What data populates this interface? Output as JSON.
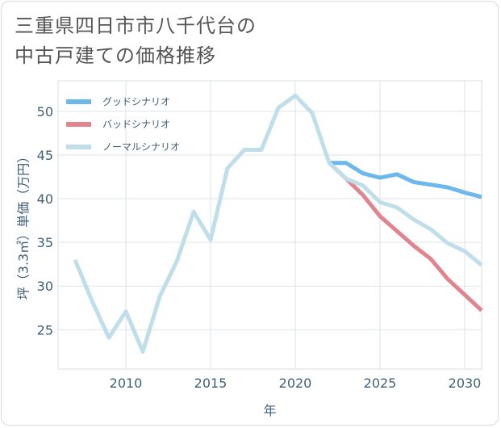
{
  "title_lines": [
    "三重県四日市市八千代台の",
    "中古戸建ての価格推移"
  ],
  "chart_data": {
    "type": "line",
    "xlabel": "年",
    "ylabel": "坪（3.3㎡）単価（万円）",
    "xlim": [
      2006,
      2031
    ],
    "ylim": [
      20.5,
      53.5
    ],
    "x_ticks": [
      2010,
      2015,
      2020,
      2025,
      2030
    ],
    "y_ticks": [
      25,
      30,
      35,
      40,
      45,
      50
    ],
    "grid": true,
    "legend_position": "top-left",
    "series": [
      {
        "name": "グッドシナリオ",
        "color": "#6cb8ec",
        "x": [
          2022,
          2023,
          2024,
          2025,
          2026,
          2027,
          2028,
          2029,
          2030,
          2031
        ],
        "y": [
          44.1,
          44.1,
          42.9,
          42.4,
          42.8,
          41.9,
          41.6,
          41.3,
          40.7,
          40.2
        ]
      },
      {
        "name": "バッドシナリオ",
        "color": "#e0848e",
        "x": [
          2022,
          2023,
          2024,
          2025,
          2026,
          2027,
          2028,
          2029,
          2030,
          2031
        ],
        "y": [
          44.1,
          42.3,
          40.4,
          38.0,
          36.3,
          34.6,
          33.1,
          30.8,
          29.0,
          27.2
        ]
      },
      {
        "name": "ノーマルシナリオ",
        "color": "#bfdeea",
        "x": [
          2007,
          2008,
          2009,
          2010,
          2011,
          2012,
          2013,
          2014,
          2015,
          2016,
          2017,
          2018,
          2019,
          2020,
          2021,
          2022,
          2023,
          2024,
          2025,
          2026,
          2027,
          2028,
          2029,
          2030,
          2031
        ],
        "y": [
          33.0,
          28.3,
          24.1,
          27.1,
          22.5,
          28.8,
          32.8,
          38.5,
          35.3,
          43.5,
          45.6,
          45.6,
          50.4,
          51.8,
          49.8,
          44.1,
          42.3,
          41.5,
          39.6,
          39.0,
          37.6,
          36.5,
          34.9,
          34.0,
          32.4
        ]
      }
    ]
  }
}
